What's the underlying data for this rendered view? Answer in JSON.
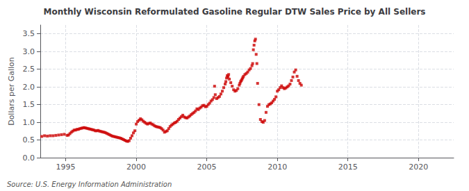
{
  "chart_data": {
    "type": "scatter",
    "title": "Monthly Wisconsin Reformulated Gasoline Regular DTW Sales Price by All Sellers",
    "ylabel": "Dollars per Gallon",
    "annotations": [
      "Source: U.S. Energy Information Administration"
    ],
    "color": "#cc0000",
    "marker": "square",
    "grid": true,
    "xlim": [
      1993.2,
      2022.5
    ],
    "ylim": [
      0.0,
      3.75
    ],
    "xticks": [
      1995,
      2000,
      2005,
      2010,
      2015,
      2020
    ],
    "yticks": [
      {
        "value": 0.0,
        "label": "0.0"
      },
      0.5,
      {
        "value": 1.0,
        "label": "1.0"
      },
      1.5,
      {
        "value": 2.0,
        "label": "2.0"
      },
      2.5,
      {
        "value": 3.0,
        "label": "3.0"
      },
      3.5
    ],
    "x": [
      1993.3,
      1993.5,
      1993.7,
      1993.9,
      1994.1,
      1994.3,
      1994.5,
      1994.7,
      1994.9,
      1995.1,
      1995.2,
      1995.3,
      1995.4,
      1995.5,
      1995.6,
      1995.7,
      1995.8,
      1995.9,
      1996.0,
      1996.1,
      1996.2,
      1996.3,
      1996.4,
      1996.5,
      1996.6,
      1996.7,
      1996.8,
      1996.9,
      1997.0,
      1997.1,
      1997.2,
      1997.3,
      1997.4,
      1997.5,
      1997.6,
      1997.7,
      1997.8,
      1997.9,
      1998.0,
      1998.1,
      1998.2,
      1998.3,
      1998.4,
      1998.5,
      1998.6,
      1998.7,
      1998.8,
      1998.9,
      1999.0,
      1999.1,
      1999.2,
      1999.3,
      1999.4,
      1999.5,
      1999.6,
      1999.7,
      1999.8,
      1999.9,
      2000.0,
      2000.1,
      2000.2,
      2000.3,
      2000.4,
      2000.5,
      2000.6,
      2000.7,
      2000.8,
      2000.9,
      2001.0,
      2001.1,
      2001.2,
      2001.3,
      2001.4,
      2001.5,
      2001.6,
      2001.7,
      2001.8,
      2001.9,
      2002.0,
      2002.1,
      2002.2,
      2002.3,
      2002.4,
      2002.5,
      2002.6,
      2002.7,
      2002.8,
      2002.9,
      2003.0,
      2003.1,
      2003.2,
      2003.3,
      2003.4,
      2003.5,
      2003.6,
      2003.7,
      2003.8,
      2003.9,
      2004.0,
      2004.1,
      2004.2,
      2004.3,
      2004.4,
      2004.5,
      2004.6,
      2004.7,
      2004.8,
      2004.9,
      2005.0,
      2005.1,
      2005.2,
      2005.3,
      2005.4,
      2005.5,
      2005.55,
      2005.6,
      2005.7,
      2005.8,
      2005.9,
      2006.0,
      2006.1,
      2006.2,
      2006.3,
      2006.35,
      2006.4,
      2006.45,
      2006.5,
      2006.55,
      2006.6,
      2006.7,
      2006.8,
      2006.9,
      2007.0,
      2007.1,
      2007.2,
      2007.3,
      2007.35,
      2007.4,
      2007.45,
      2007.5,
      2007.55,
      2007.6,
      2007.7,
      2007.8,
      2007.9,
      2008.0,
      2008.1,
      2008.2,
      2008.25,
      2008.3,
      2008.35,
      2008.4,
      2008.45,
      2008.5,
      2008.55,
      2008.6,
      2008.7,
      2008.8,
      2008.9,
      2009.0,
      2009.1,
      2009.2,
      2009.3,
      2009.4,
      2009.5,
      2009.6,
      2009.7,
      2009.8,
      2009.9,
      2010.0,
      2010.1,
      2010.2,
      2010.3,
      2010.4,
      2010.5,
      2010.6,
      2010.7,
      2010.8,
      2010.9,
      2011.0,
      2011.1,
      2011.2,
      2011.3,
      2011.4,
      2011.5,
      2011.6,
      2011.7
    ],
    "values": [
      0.6,
      0.62,
      0.61,
      0.62,
      0.62,
      0.63,
      0.64,
      0.65,
      0.66,
      0.63,
      0.64,
      0.68,
      0.72,
      0.75,
      0.78,
      0.78,
      0.8,
      0.8,
      0.82,
      0.83,
      0.84,
      0.85,
      0.84,
      0.83,
      0.82,
      0.81,
      0.8,
      0.79,
      0.78,
      0.76,
      0.76,
      0.77,
      0.75,
      0.74,
      0.73,
      0.72,
      0.71,
      0.69,
      0.67,
      0.65,
      0.63,
      0.61,
      0.6,
      0.59,
      0.58,
      0.57,
      0.56,
      0.55,
      0.53,
      0.51,
      0.49,
      0.47,
      0.46,
      0.48,
      0.55,
      0.62,
      0.7,
      0.76,
      0.95,
      1.02,
      1.06,
      1.1,
      1.07,
      1.03,
      1.0,
      0.97,
      0.95,
      0.97,
      0.98,
      0.95,
      0.93,
      0.9,
      0.88,
      0.87,
      0.86,
      0.85,
      0.82,
      0.78,
      0.72,
      0.74,
      0.76,
      0.82,
      0.88,
      0.92,
      0.95,
      0.98,
      1.0,
      1.03,
      1.08,
      1.12,
      1.16,
      1.2,
      1.15,
      1.13,
      1.12,
      1.15,
      1.18,
      1.22,
      1.25,
      1.28,
      1.32,
      1.38,
      1.36,
      1.4,
      1.43,
      1.47,
      1.48,
      1.44,
      1.45,
      1.5,
      1.54,
      1.6,
      1.64,
      1.7,
      2.02,
      1.78,
      1.67,
      1.7,
      1.73,
      1.8,
      1.88,
      1.98,
      2.08,
      2.15,
      2.25,
      2.32,
      2.28,
      2.35,
      2.22,
      2.12,
      2.02,
      1.92,
      1.88,
      1.9,
      1.95,
      2.05,
      2.1,
      2.15,
      2.18,
      2.22,
      2.26,
      2.3,
      2.35,
      2.38,
      2.42,
      2.48,
      2.52,
      2.6,
      2.66,
      3.05,
      3.18,
      3.3,
      3.35,
      2.92,
      2.66,
      2.1,
      1.5,
      1.08,
      1.02,
      1.0,
      1.05,
      1.28,
      1.45,
      1.5,
      1.52,
      1.55,
      1.6,
      1.65,
      1.72,
      1.88,
      1.92,
      1.98,
      2.03,
      1.98,
      1.95,
      1.97,
      2.0,
      2.03,
      2.08,
      2.18,
      2.28,
      2.42,
      2.48,
      2.3,
      2.18,
      2.1,
      2.05
    ]
  }
}
